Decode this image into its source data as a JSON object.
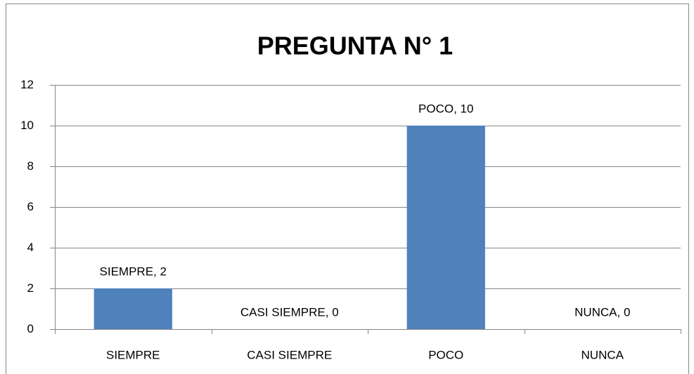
{
  "chart_data": {
    "type": "bar",
    "title": "PREGUNTA N° 1",
    "categories": [
      "SIEMPRE",
      "CASI SIEMPRE",
      "POCO",
      "NUNCA"
    ],
    "values": [
      2,
      0,
      10,
      0
    ],
    "value_labels": [
      "SIEMPRE, 2",
      "CASI SIEMPRE, 0",
      "POCO, 10",
      "NUNCA, 0"
    ],
    "color": "#4f81bd",
    "ylim": [
      0,
      12
    ],
    "yticks": [
      0,
      2,
      4,
      6,
      8,
      10,
      12
    ],
    "grid": true
  }
}
